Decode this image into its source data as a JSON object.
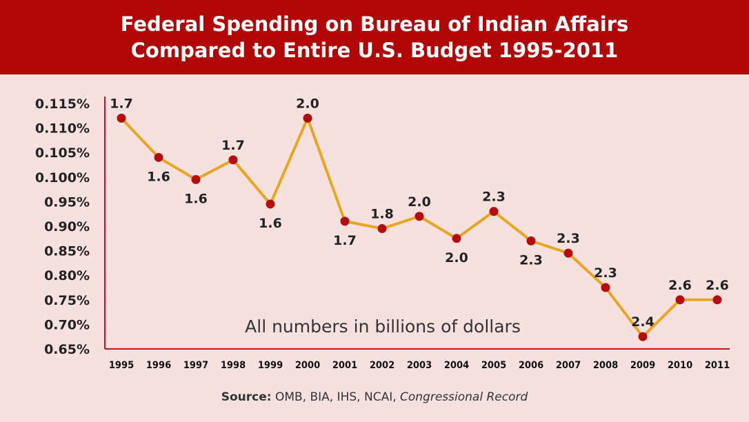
{
  "header": {
    "title_line1": "Federal Spending on Bureau of Indian Affairs",
    "title_line2": "Compared to Entire U.S. Budget 1995-2011"
  },
  "source": {
    "label": "Source:",
    "text": " OMB, BIA, IHS, NCAI, ",
    "publication": "Congressional Record"
  },
  "colors": {
    "banner": "#b00606",
    "background": "#f7e1df",
    "line": "#eaa520",
    "marker": "#b50d0d",
    "axis": "#c0121a"
  },
  "chart_data": {
    "type": "line",
    "title": "Federal Spending on Bureau of Indian Affairs Compared to Entire U.S. Budget 1995-2011",
    "xlabel": "",
    "ylabel": "",
    "annotation": "All numbers in billions of dollars",
    "y_ticks": [
      "0.65%",
      "0.70%",
      "0.75%",
      "0.80%",
      "0.85%",
      "0.90%",
      "0.95%",
      "0.100%",
      "0.105%",
      "0.110%",
      "0.115%"
    ],
    "ylim": [
      0.65,
      1.15
    ],
    "categories": [
      "1995",
      "1996",
      "1997",
      "1998",
      "1999",
      "2000",
      "2001",
      "2002",
      "2003",
      "2004",
      "2005",
      "2006",
      "2007",
      "2008",
      "2009",
      "2010",
      "2011"
    ],
    "series": [
      {
        "values": [
          1.12,
          1.04,
          0.995,
          1.035,
          0.945,
          1.12,
          0.91,
          0.895,
          0.92,
          0.875,
          0.93,
          0.87,
          0.845,
          0.775,
          0.675,
          0.75,
          0.75
        ],
        "data_labels": [
          "1.7",
          "1.6",
          "1.6",
          "1.7",
          "1.6",
          "2.0",
          "1.7",
          "1.8",
          "2.0",
          "2.0",
          "2.3",
          "2.3",
          "2.3",
          "2.3",
          "2.4",
          "2.6",
          "2.6"
        ],
        "label_positions": [
          "above",
          "below",
          "below",
          "above",
          "below",
          "above",
          "below",
          "above",
          "above",
          "below",
          "above",
          "below",
          "above",
          "above",
          "above",
          "above",
          "above"
        ]
      }
    ],
    "grid": false,
    "legend": "none"
  }
}
